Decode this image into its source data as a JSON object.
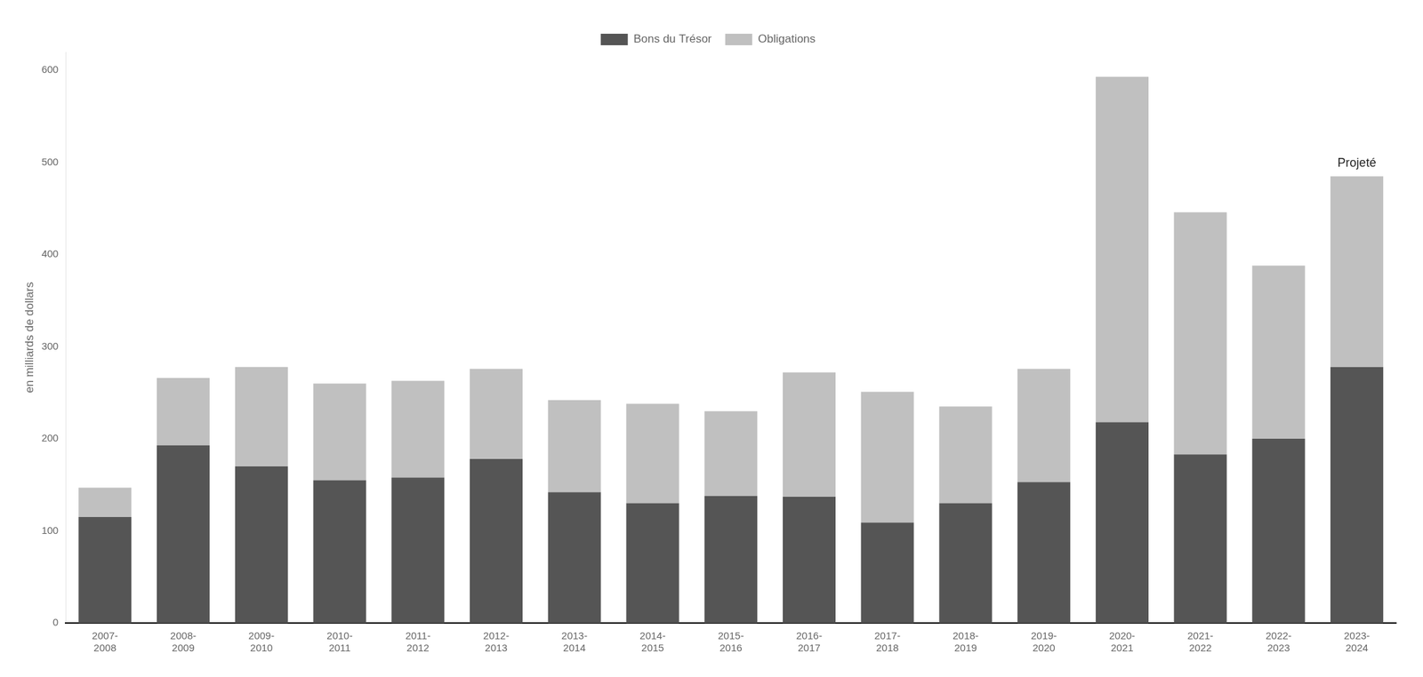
{
  "chart_data": {
    "type": "bar",
    "stacked": true,
    "ylabel": "en milliards de dollars",
    "categories": [
      "2007-\n2008",
      "2008-\n2009",
      "2009-\n2010",
      "2010-\n2011",
      "2011-\n2012",
      "2012-\n2013",
      "2013-\n2014",
      "2014-\n2015",
      "2015-\n2016",
      "2016-\n2017",
      "2017-\n2018",
      "2018-\n2019",
      "2019-\n2020",
      "2020-\n2021",
      "2021-\n2022",
      "2022-\n2023",
      "2023-\n2024"
    ],
    "series": [
      {
        "name": "Bons du Trésor",
        "color": "#555555",
        "values": [
          115,
          193,
          170,
          155,
          158,
          178,
          142,
          130,
          138,
          137,
          109,
          130,
          153,
          218,
          183,
          200,
          278
        ]
      },
      {
        "name": "Obligations",
        "color": "#c0c0c0",
        "values": [
          32,
          73,
          108,
          105,
          105,
          98,
          100,
          108,
          92,
          135,
          142,
          105,
          123,
          375,
          263,
          188,
          207
        ]
      }
    ],
    "ylim": [
      0,
      620
    ],
    "yticks": [
      0,
      100,
      200,
      300,
      400,
      500,
      600
    ],
    "grid": false,
    "legend": "top",
    "annotations": [
      {
        "text": "Projeté",
        "category": "2023-\n2024"
      }
    ]
  }
}
